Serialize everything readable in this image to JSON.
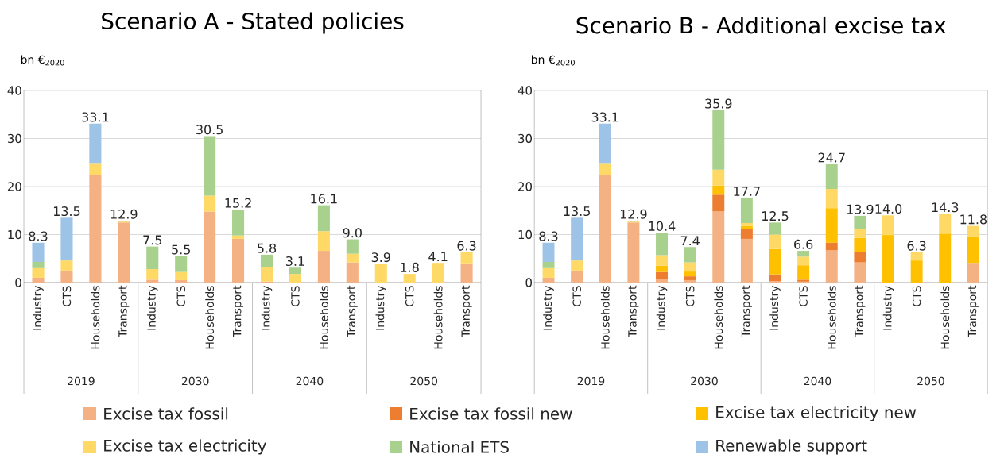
{
  "chart_data": [
    {
      "type": "bar",
      "stacked": true,
      "title": "Scenario A - Stated policies",
      "ylabel": "bn €$_{2020}$",
      "categories": [
        "Industry",
        "CTS",
        "Households",
        "Transport",
        "Industry",
        "CTS",
        "Households",
        "Transport",
        "Industry",
        "CTS",
        "Households",
        "Transport",
        "Industry",
        "CTS",
        "Households",
        "Transport"
      ],
      "annotations": [
        "2019",
        "2030",
        "2040",
        "2050"
      ],
      "series": [
        {
          "color": "#f4b183",
          "values": [
            1.0,
            2.5,
            22.4,
            12.5,
            0.6,
            0.5,
            14.8,
            9.1,
            0.2,
            null,
            6.6,
            4.2,
            null,
            null,
            null,
            4.0
          ]
        },
        {
          "color": "#ffd966",
          "values": [
            2.0,
            2.1,
            2.5,
            0.2,
            2.2,
            1.7,
            3.3,
            0.7,
            3.1,
            1.8,
            4.1,
            1.8,
            3.9,
            1.8,
            4.1,
            2.3
          ]
        },
        {
          "color": "#a9d18e",
          "values": [
            1.3,
            null,
            null,
            null,
            4.7,
            3.3,
            12.4,
            5.4,
            2.5,
            1.3,
            5.4,
            3.0,
            null,
            null,
            null,
            null
          ]
        },
        {
          "color": "#9dc3e6",
          "values": [
            4.0,
            8.9,
            8.2,
            0.2,
            null,
            null,
            null,
            null,
            null,
            null,
            null,
            null,
            null,
            null,
            null,
            null
          ]
        }
      ],
      "totals": [
        "8.3",
        "13.5",
        "33.1",
        "12.9",
        "7.5",
        "5.5",
        "30.5",
        "15.2",
        "5.8",
        "3.1",
        "16.1",
        "9.0",
        "3.9",
        "1.8",
        "4.1",
        "6.3"
      ],
      "ylim": [
        0,
        40
      ],
      "yticks": [
        0,
        10,
        20,
        30,
        40
      ],
      "grid": "y"
    },
    {
      "type": "bar",
      "stacked": true,
      "title": "Scenario B - Additional excise tax",
      "ylabel": "bn €$_{2020}$",
      "categories": [
        "Industry",
        "CTS",
        "Households",
        "Transport",
        "Industry",
        "CTS",
        "Households",
        "Transport",
        "Industry",
        "CTS",
        "Households",
        "Transport",
        "Industry",
        "CTS",
        "Households",
        "Transport"
      ],
      "annotations": [
        "2019",
        "2030",
        "2040",
        "2050"
      ],
      "series": [
        {
          "name": "Excise tax fossil",
          "color": "#f4b183",
          "values": [
            1.0,
            2.5,
            22.4,
            12.5,
            0.7,
            0.5,
            14.8,
            9.1,
            0.3,
            0.2,
            6.7,
            4.2,
            null,
            null,
            null,
            4.1
          ]
        },
        {
          "name": "Excise tax fossil new",
          "color": "#ed7d31",
          "values": [
            null,
            null,
            null,
            null,
            1.5,
            0.8,
            3.5,
            2.0,
            1.4,
            0.4,
            1.6,
            2.1,
            null,
            null,
            null,
            null
          ]
        },
        {
          "name": "Excise tax electricity new",
          "color": "#ffc000",
          "values": [
            null,
            null,
            null,
            null,
            1.3,
            1.0,
            1.9,
            0.7,
            5.3,
            3.0,
            7.2,
            3.0,
            9.9,
            4.6,
            10.2,
            5.5
          ]
        },
        {
          "name": "Excise tax electricity",
          "color": "#ffd966",
          "values": [
            2.0,
            2.1,
            2.5,
            0.2,
            2.2,
            1.9,
            3.3,
            0.6,
            3.0,
            1.8,
            4.0,
            1.8,
            4.1,
            1.7,
            4.1,
            2.2
          ]
        },
        {
          "name": "National ETS",
          "color": "#a9d18e",
          "values": [
            1.3,
            null,
            null,
            null,
            4.7,
            3.2,
            12.4,
            5.3,
            2.5,
            1.2,
            5.2,
            2.8,
            null,
            null,
            null,
            null
          ]
        },
        {
          "name": "Renewable support",
          "color": "#9dc3e6",
          "values": [
            4.0,
            8.9,
            8.2,
            0.2,
            null,
            null,
            null,
            null,
            null,
            null,
            null,
            null,
            null,
            null,
            null,
            null
          ]
        }
      ],
      "totals": [
        "8.3",
        "13.5",
        "33.1",
        "12.9",
        "10.4",
        "7.4",
        "35.9",
        "17.7",
        "12.5",
        "6.6",
        "24.7",
        "13.9",
        "14.0",
        "6.3",
        "14.3",
        "11.8"
      ],
      "ylim": [
        0,
        40
      ],
      "yticks": [
        0,
        10,
        20,
        30,
        40
      ],
      "grid": "y",
      "legend": "bottom"
    }
  ]
}
